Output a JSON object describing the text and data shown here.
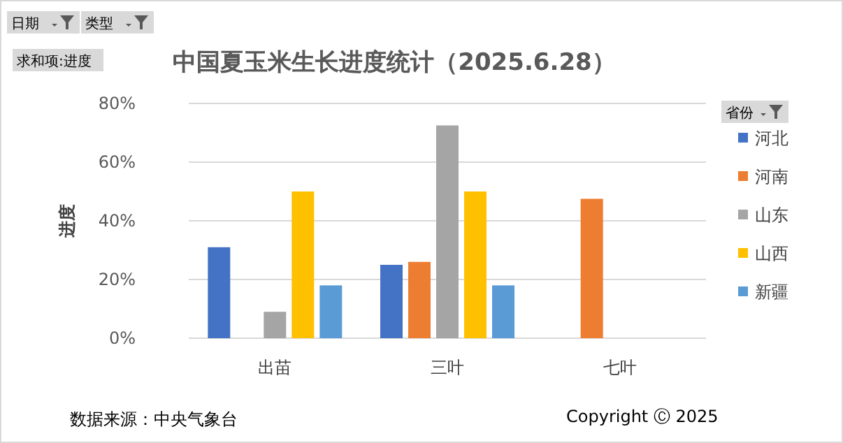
{
  "chart_data": {
    "type": "bar",
    "title": "中国夏玉米生长进度统计（2025.6.28）",
    "ylabel": "进度",
    "legend_title": "省份",
    "categories": [
      "出苗",
      "三叶",
      "七叶"
    ],
    "series": [
      {
        "name": "河北",
        "color": "#4472c4",
        "values": [
          31,
          25,
          null
        ]
      },
      {
        "name": "河南",
        "color": "#ed7d31",
        "values": [
          null,
          26,
          47.5
        ]
      },
      {
        "name": "山东",
        "color": "#a5a5a5",
        "values": [
          9,
          72.5,
          null
        ]
      },
      {
        "name": "山西",
        "color": "#ffc000",
        "values": [
          50,
          50,
          null
        ]
      },
      {
        "name": "新疆",
        "color": "#5b9bd5",
        "values": [
          18,
          18,
          null
        ]
      }
    ],
    "ylim": [
      0,
      80
    ],
    "yticks": [
      {
        "value": 0,
        "label": "0%"
      },
      {
        "value": 20,
        "label": "20%"
      },
      {
        "value": 40,
        "label": "40%"
      },
      {
        "value": 60,
        "label": "60%"
      },
      {
        "value": 80,
        "label": "80%"
      }
    ],
    "grid": "y",
    "legend": "right",
    "annotations": [
      "日期",
      "类型",
      "求和项:进度",
      "数据来源：中央气象台",
      "Copyright Ⓒ 2025"
    ]
  }
}
